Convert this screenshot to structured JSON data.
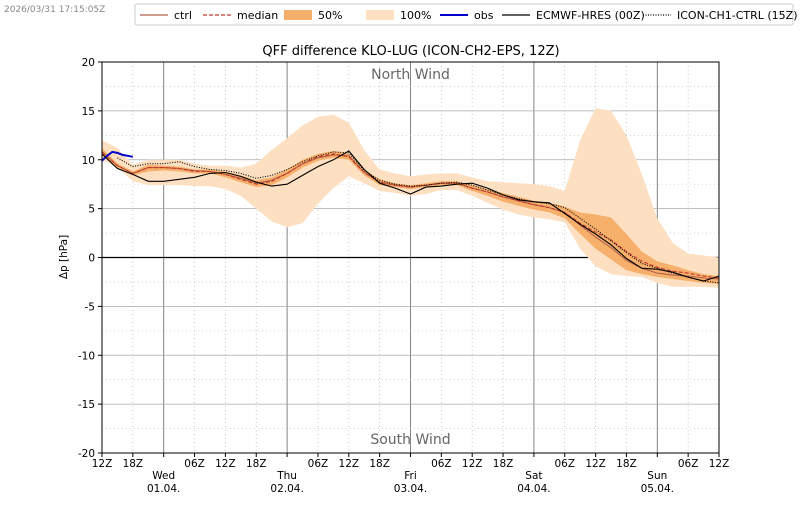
{
  "timestamp": "2026/03/31 17:15:05Z",
  "chart_data": {
    "type": "line",
    "title": "QFF difference KLO-LUG (ICON-CH2-EPS, 12Z)",
    "ylabel": "Δp [hPa]",
    "xlabel": "",
    "ylim": [
      -20,
      20
    ],
    "xlim": [
      0,
      120
    ],
    "yticks": [
      -20,
      -15,
      -10,
      -5,
      0,
      5,
      10,
      15,
      20
    ],
    "grid": true,
    "legend": "top",
    "annotations": {
      "top": "North Wind",
      "bottom": "South Wind"
    },
    "x_tick_labels": [
      {
        "x": 0,
        "label": "12Z"
      },
      {
        "x": 6,
        "label": "18Z"
      },
      {
        "x": 18,
        "label": "06Z"
      },
      {
        "x": 24,
        "label": "12Z"
      },
      {
        "x": 30,
        "label": "18Z"
      },
      {
        "x": 42,
        "label": "06Z"
      },
      {
        "x": 48,
        "label": "12Z"
      },
      {
        "x": 54,
        "label": "18Z"
      },
      {
        "x": 66,
        "label": "06Z"
      },
      {
        "x": 72,
        "label": "12Z"
      },
      {
        "x": 78,
        "label": "18Z"
      },
      {
        "x": 90,
        "label": "06Z"
      },
      {
        "x": 96,
        "label": "12Z"
      },
      {
        "x": 102,
        "label": "18Z"
      },
      {
        "x": 114,
        "label": "06Z"
      },
      {
        "x": 120,
        "label": "12Z"
      }
    ],
    "day_labels": [
      {
        "x": 12,
        "day": "Wed",
        "date": "01.04."
      },
      {
        "x": 36,
        "day": "Thu",
        "date": "02.04."
      },
      {
        "x": 60,
        "day": "Fri",
        "date": "03.04."
      },
      {
        "x": 84,
        "day": "Sat",
        "date": "04.04."
      },
      {
        "x": 108,
        "day": "Sun",
        "date": "05.04."
      }
    ],
    "x": [
      0,
      3,
      6,
      9,
      12,
      15,
      18,
      21,
      24,
      27,
      30,
      33,
      36,
      39,
      42,
      45,
      48,
      51,
      54,
      57,
      60,
      63,
      66,
      69,
      72,
      75,
      78,
      81,
      84,
      87,
      90,
      93,
      96,
      99,
      102,
      105,
      108,
      111,
      114,
      117,
      120
    ],
    "bands": [
      {
        "name": "100%",
        "color": "#fde0c2",
        "upper": [
          12,
          11.2,
          9.5,
          10,
          10,
          10,
          9.6,
          9.4,
          9.4,
          9.2,
          9.6,
          11,
          12.2,
          13.5,
          14.4,
          14.6,
          13.8,
          11,
          9,
          8.6,
          8.3,
          8.5,
          8.6,
          8.6,
          8.2,
          7.8,
          7.7,
          7.6,
          7.5,
          7.3,
          6.8,
          12,
          15.3,
          15,
          12.5,
          8.5,
          4,
          1.5,
          0.4,
          0.2,
          0
        ],
        "lower": [
          10,
          9.2,
          7.8,
          7.4,
          7.4,
          7.4,
          7.3,
          7.3,
          7.0,
          6.3,
          5,
          3.7,
          3.1,
          3.5,
          5.5,
          7.1,
          8.3,
          7.6,
          6.8,
          6.6,
          6.3,
          6.5,
          6.9,
          6.9,
          6.3,
          5.6,
          4.9,
          4.4,
          4.1,
          3.9,
          3.6,
          0.9,
          -0.9,
          -1.7,
          -1.9,
          -2.0,
          -2.6,
          -3.0,
          -3.0,
          -3.0,
          -3.1
        ]
      },
      {
        "name": "50%",
        "color": "#f7b06b",
        "upper": [
          11.2,
          9.6,
          8.8,
          9.5,
          9.4,
          9.3,
          9.0,
          9.0,
          8.8,
          8.4,
          7.9,
          8.2,
          9.0,
          10.0,
          10.6,
          10.9,
          10.6,
          9.0,
          8.0,
          7.6,
          7.4,
          7.6,
          7.8,
          7.8,
          7.4,
          7.0,
          6.6,
          6.2,
          5.8,
          5.6,
          5.2,
          4.6,
          4.4,
          4.1,
          2.4,
          0.6,
          -0.4,
          -0.8,
          -1.3,
          -1.7,
          -1.9
        ],
        "lower": [
          10.4,
          9.2,
          8.4,
          8.8,
          8.9,
          8.8,
          8.6,
          8.6,
          8.2,
          7.7,
          7.2,
          7.4,
          8.2,
          9.2,
          9.9,
          10.2,
          10.0,
          8.4,
          7.4,
          7.2,
          7.0,
          7.2,
          7.4,
          7.4,
          6.8,
          6.3,
          5.7,
          5.3,
          4.9,
          4.6,
          4.0,
          2.4,
          0.9,
          -0.2,
          -1.3,
          -1.7,
          -2.0,
          -2.2,
          -2.4,
          -2.6,
          -2.7
        ]
      }
    ],
    "series": [
      {
        "name": "ctrl",
        "color": "#b5614c",
        "dash": "",
        "values": [
          10.8,
          9.4,
          8.6,
          9.2,
          9.2,
          9.1,
          8.9,
          8.8,
          8.5,
          8.1,
          7.6,
          7.9,
          8.6,
          9.6,
          10.2,
          10.5,
          10.4,
          8.7,
          7.7,
          7.4,
          7.2,
          7.4,
          7.6,
          7.6,
          7.1,
          6.7,
          6.2,
          5.8,
          5.4,
          5.1,
          4.6,
          3.3,
          2.1,
          1.0,
          -0.3,
          -1.1,
          -1.6,
          -1.8,
          -1.9,
          -2.1,
          -2.2
        ]
      },
      {
        "name": "median",
        "color": "#c0392b",
        "dash": "4,2",
        "values": [
          10.8,
          9.4,
          8.6,
          9.2,
          9.2,
          9.1,
          8.8,
          8.8,
          8.5,
          8.0,
          7.5,
          7.8,
          8.6,
          9.6,
          10.3,
          10.6,
          10.3,
          8.7,
          7.7,
          7.4,
          7.2,
          7.4,
          7.6,
          7.6,
          7.1,
          6.7,
          6.2,
          5.8,
          5.4,
          5.1,
          4.6,
          3.5,
          2.6,
          1.8,
          0.6,
          -0.4,
          -1.0,
          -1.4,
          -1.6,
          -1.9,
          -2.1
        ]
      },
      {
        "name": "obs",
        "color": "#0000cc",
        "dash": "",
        "width": 2,
        "values": [
          10.0,
          10.8,
          null,
          null,
          null,
          null,
          null,
          null,
          null,
          null,
          null,
          null,
          null,
          null,
          null,
          null,
          null,
          null,
          null,
          null,
          null,
          null,
          null,
          null,
          null,
          null,
          null,
          null,
          null,
          null,
          null,
          null,
          null,
          null,
          null,
          null,
          null,
          null,
          null,
          null,
          null
        ],
        "extra_x": [
          0,
          1,
          2,
          3,
          4,
          5,
          6
        ],
        "extra_y": [
          9.9,
          10.4,
          10.8,
          10.7,
          10.5,
          10.4,
          10.3
        ]
      },
      {
        "name": "ECMWF-HRES (00Z)",
        "color": "#000000",
        "dash": "",
        "values": [
          10.6,
          9.1,
          8.5,
          7.8,
          7.8,
          8.0,
          8.2,
          8.6,
          8.7,
          8.3,
          7.7,
          7.3,
          7.5,
          8.4,
          9.3,
          10.0,
          10.9,
          9.0,
          7.6,
          7.1,
          6.5,
          7.2,
          7.3,
          7.5,
          7.6,
          7.1,
          6.4,
          5.9,
          5.7,
          5.6,
          4.5,
          3.4,
          2.4,
          1.3,
          -0.1,
          -1.1,
          -1.2,
          -1.5,
          -2.0,
          -2.4,
          -1.9
        ]
      },
      {
        "name": "ICON-CH1-CTRL (15Z)",
        "color": "#000000",
        "dash": "1,1.5",
        "values": [
          null,
          10.2,
          9.3,
          9.6,
          9.6,
          9.8,
          9.3,
          9.0,
          8.9,
          8.6,
          8.1,
          8.4,
          9.0,
          9.8,
          10.4,
          10.8,
          10.7,
          8.9,
          7.9,
          7.5,
          7.3,
          7.4,
          7.6,
          7.7,
          7.4,
          6.9,
          6.4,
          6.0,
          5.7,
          5.5,
          5.1,
          4.0,
          2.9,
          1.7,
          0.5,
          -0.6,
          -1.1,
          -1.6,
          -2.0,
          -2.4,
          -2.6
        ]
      }
    ],
    "legend_items": [
      {
        "label": "ctrl",
        "kind": "line",
        "color": "#b5614c",
        "dash": ""
      },
      {
        "label": "median",
        "kind": "line",
        "color": "#c0392b",
        "dash": "4,2"
      },
      {
        "label": "50%",
        "kind": "patch",
        "color": "#f7b06b"
      },
      {
        "label": "100%",
        "kind": "patch",
        "color": "#fde0c2"
      },
      {
        "label": "obs",
        "kind": "line",
        "color": "#0000cc",
        "dash": "",
        "width": 2
      },
      {
        "label": "ECMWF-HRES (00Z)",
        "kind": "line",
        "color": "#000000",
        "dash": ""
      },
      {
        "label": "ICON-CH1-CTRL (15Z)",
        "kind": "line",
        "color": "#000000",
        "dash": "1,1.5"
      }
    ]
  }
}
